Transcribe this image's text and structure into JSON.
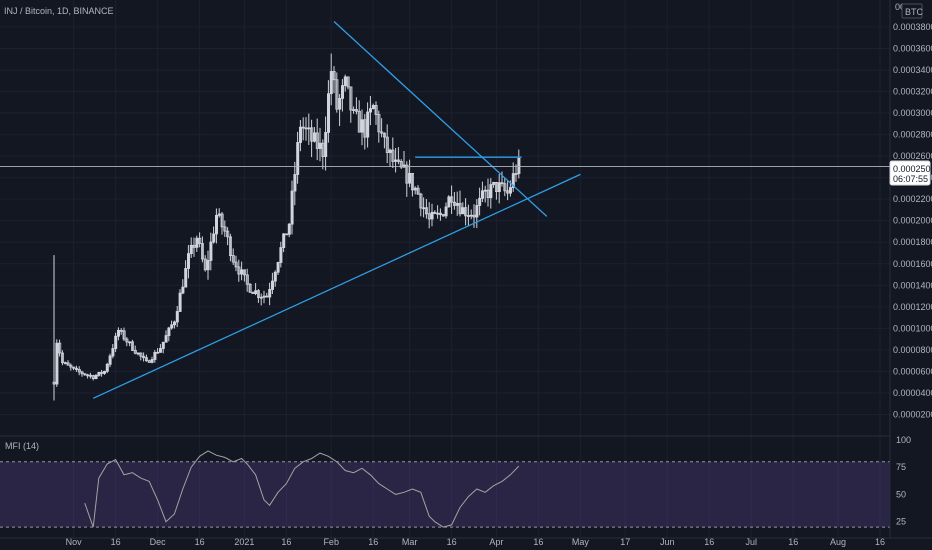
{
  "chart_data": {
    "type": "candlestick",
    "header": "INJ / Bitcoin, 1D, BINANCE",
    "currency_label": "BTC",
    "price_axis_ticks": [
      "0.00038000",
      "0.00036000",
      "0.00034000",
      "0.00032000",
      "0.00030000",
      "0.00028000",
      "0.00026000",
      "0.00024000",
      "0.00022000",
      "0.00020000",
      "0.00018000",
      "0.00016000",
      "0.00014000",
      "0.00012000",
      "0.00010000",
      "0.00008000",
      "0.00006000",
      "0.00004000",
      "0.00002000"
    ],
    "price_axis_top_partial": "00",
    "price_range": [
      0.0,
      0.000405
    ],
    "current_price": {
      "value": 0.0002504,
      "label": "0.00025040",
      "countdown": "06:07:55",
      "color": "#b2b5be"
    },
    "time_axis_ticks": [
      "Nov",
      "16",
      "Dec",
      "16",
      "2021",
      "16",
      "Feb",
      "16",
      "Mar",
      "16",
      "Apr",
      "16",
      "May",
      "17",
      "Jun",
      "16",
      "Jul",
      "16",
      "Aug",
      "16"
    ],
    "candle_colors": {
      "up": "#26a69a",
      "down": "#ef5350",
      "rendered": "#d1d4dc"
    },
    "price_series": [
      {
        "date": "2020-10-25",
        "value": 5e-05
      },
      {
        "date": "2020-10-26",
        "value": 8.8e-05
      },
      {
        "date": "2020-10-28",
        "value": 6.8e-05
      },
      {
        "date": "2020-11-02",
        "value": 6e-05
      },
      {
        "date": "2020-11-08",
        "value": 5.5e-05
      },
      {
        "date": "2020-11-12",
        "value": 6e-05
      },
      {
        "date": "2020-11-17",
        "value": 9.8e-05
      },
      {
        "date": "2020-11-22",
        "value": 8.2e-05
      },
      {
        "date": "2020-11-27",
        "value": 6.8e-05
      },
      {
        "date": "2020-12-02",
        "value": 8.2e-05
      },
      {
        "date": "2020-12-07",
        "value": 0.000108
      },
      {
        "date": "2020-12-12",
        "value": 0.000165
      },
      {
        "date": "2020-12-15",
        "value": 0.000185
      },
      {
        "date": "2020-12-18",
        "value": 0.000152
      },
      {
        "date": "2020-12-22",
        "value": 0.000205
      },
      {
        "date": "2020-12-25",
        "value": 0.00019
      },
      {
        "date": "2020-12-28",
        "value": 0.000165
      },
      {
        "date": "2021-01-02",
        "value": 0.00014
      },
      {
        "date": "2021-01-06",
        "value": 0.000132
      },
      {
        "date": "2021-01-09",
        "value": 0.00013
      },
      {
        "date": "2021-01-13",
        "value": 0.000165
      },
      {
        "date": "2021-01-17",
        "value": 0.000198
      },
      {
        "date": "2021-01-21",
        "value": 0.00029
      },
      {
        "date": "2021-01-25",
        "value": 0.000275
      },
      {
        "date": "2021-01-29",
        "value": 0.000265
      },
      {
        "date": "2021-02-01",
        "value": 0.00034
      },
      {
        "date": "2021-02-03",
        "value": 0.000305
      },
      {
        "date": "2021-02-06",
        "value": 0.000325
      },
      {
        "date": "2021-02-09",
        "value": 0.000295
      },
      {
        "date": "2021-02-13",
        "value": 0.000285
      },
      {
        "date": "2021-02-16",
        "value": 0.000305
      },
      {
        "date": "2021-02-20",
        "value": 0.00027
      },
      {
        "date": "2021-02-24",
        "value": 0.00025
      },
      {
        "date": "2021-02-28",
        "value": 0.000242
      },
      {
        "date": "2021-03-04",
        "value": 0.000225
      },
      {
        "date": "2021-03-08",
        "value": 0.0002
      },
      {
        "date": "2021-03-12",
        "value": 0.000205
      },
      {
        "date": "2021-03-16",
        "value": 0.000225
      },
      {
        "date": "2021-03-20",
        "value": 0.00021
      },
      {
        "date": "2021-03-24",
        "value": 0.000207
      },
      {
        "date": "2021-03-28",
        "value": 0.000225
      },
      {
        "date": "2021-04-01",
        "value": 0.000232
      },
      {
        "date": "2021-04-05",
        "value": 0.000225
      },
      {
        "date": "2021-04-08",
        "value": 0.000248
      },
      {
        "date": "2021-04-09",
        "value": 0.0002504
      }
    ],
    "drawings": [
      {
        "name": "ascending-trendline",
        "color": "#2f9ee6",
        "points": [
          {
            "date": "2020-11-08",
            "value": 3.5e-05
          },
          {
            "date": "2021-05-01",
            "value": 0.000243
          }
        ]
      },
      {
        "name": "descending-trendline",
        "color": "#2f9ee6",
        "points": [
          {
            "date": "2021-02-02",
            "value": 0.000385
          },
          {
            "date": "2021-04-19",
            "value": 0.000204
          }
        ]
      },
      {
        "name": "horizontal-resistance-line",
        "color": "#2f9ee6",
        "points": [
          {
            "date": "2021-03-03",
            "value": 0.000259
          },
          {
            "date": "2021-04-10",
            "value": 0.000259
          }
        ]
      },
      {
        "name": "current-price-line",
        "color": "#b2b5be",
        "value": 0.0002504
      }
    ],
    "indicator": {
      "title": "MFI (14)",
      "axis_ticks": [
        "100",
        "75",
        "50",
        "25"
      ],
      "range": [
        10,
        100
      ],
      "band": [
        20,
        80
      ],
      "band_color": "#7e57c2",
      "line_color": "#a3a3a3",
      "values": [
        {
          "date": "2020-11-05",
          "value": 42
        },
        {
          "date": "2020-11-08",
          "value": 20
        },
        {
          "date": "2020-11-10",
          "value": 65
        },
        {
          "date": "2020-11-13",
          "value": 78
        },
        {
          "date": "2020-11-16",
          "value": 82
        },
        {
          "date": "2020-11-19",
          "value": 68
        },
        {
          "date": "2020-11-22",
          "value": 70
        },
        {
          "date": "2020-11-25",
          "value": 65
        },
        {
          "date": "2020-11-28",
          "value": 62
        },
        {
          "date": "2020-12-01",
          "value": 45
        },
        {
          "date": "2020-12-04",
          "value": 25
        },
        {
          "date": "2020-12-07",
          "value": 32
        },
        {
          "date": "2020-12-10",
          "value": 55
        },
        {
          "date": "2020-12-13",
          "value": 75
        },
        {
          "date": "2020-12-16",
          "value": 85
        },
        {
          "date": "2020-12-19",
          "value": 90
        },
        {
          "date": "2020-12-22",
          "value": 86
        },
        {
          "date": "2020-12-25",
          "value": 84
        },
        {
          "date": "2020-12-28",
          "value": 80
        },
        {
          "date": "2020-12-31",
          "value": 83
        },
        {
          "date": "2021-01-02",
          "value": 78
        },
        {
          "date": "2021-01-05",
          "value": 68
        },
        {
          "date": "2021-01-08",
          "value": 45
        },
        {
          "date": "2021-01-10",
          "value": 40
        },
        {
          "date": "2021-01-13",
          "value": 52
        },
        {
          "date": "2021-01-16",
          "value": 60
        },
        {
          "date": "2021-01-19",
          "value": 74
        },
        {
          "date": "2021-01-22",
          "value": 80
        },
        {
          "date": "2021-01-25",
          "value": 83
        },
        {
          "date": "2021-01-28",
          "value": 88
        },
        {
          "date": "2021-01-31",
          "value": 85
        },
        {
          "date": "2021-02-03",
          "value": 80
        },
        {
          "date": "2021-02-06",
          "value": 72
        },
        {
          "date": "2021-02-09",
          "value": 70
        },
        {
          "date": "2021-02-12",
          "value": 74
        },
        {
          "date": "2021-02-15",
          "value": 68
        },
        {
          "date": "2021-02-18",
          "value": 60
        },
        {
          "date": "2021-02-21",
          "value": 55
        },
        {
          "date": "2021-02-24",
          "value": 50
        },
        {
          "date": "2021-02-27",
          "value": 52
        },
        {
          "date": "2021-03-02",
          "value": 55
        },
        {
          "date": "2021-03-05",
          "value": 52
        },
        {
          "date": "2021-03-08",
          "value": 30
        },
        {
          "date": "2021-03-10",
          "value": 25
        },
        {
          "date": "2021-03-13",
          "value": 20
        },
        {
          "date": "2021-03-16",
          "value": 22
        },
        {
          "date": "2021-03-19",
          "value": 38
        },
        {
          "date": "2021-03-22",
          "value": 48
        },
        {
          "date": "2021-03-25",
          "value": 55
        },
        {
          "date": "2021-03-28",
          "value": 52
        },
        {
          "date": "2021-03-31",
          "value": 58
        },
        {
          "date": "2021-04-03",
          "value": 62
        },
        {
          "date": "2021-04-06",
          "value": 68
        },
        {
          "date": "2021-04-09",
          "value": 76
        }
      ]
    }
  }
}
